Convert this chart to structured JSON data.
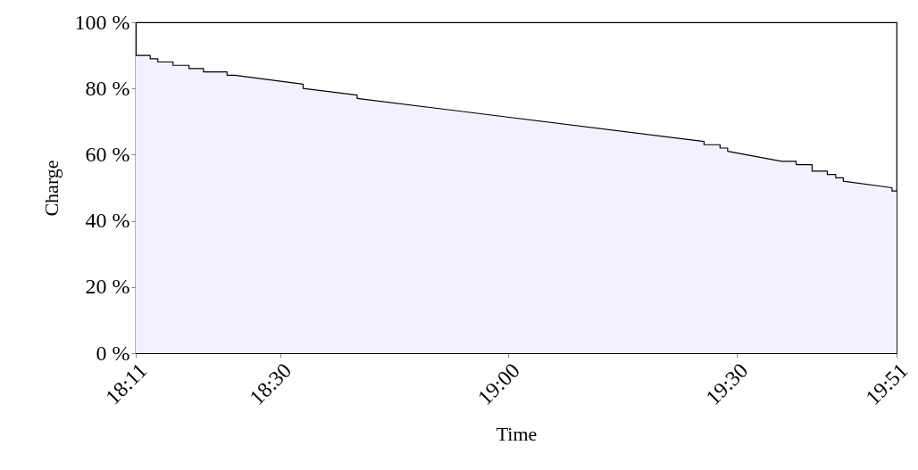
{
  "chart_data": {
    "type": "area",
    "xlabel": "Time",
    "ylabel": "Charge",
    "x": [
      18.1833,
      18.215,
      18.215,
      18.2317,
      18.2317,
      18.265,
      18.265,
      18.3,
      18.3,
      18.3317,
      18.3317,
      18.3833,
      18.3833,
      18.4,
      18.55,
      18.55,
      18.6683,
      18.6683,
      19.4283,
      19.4283,
      19.4633,
      19.4633,
      19.48,
      19.48,
      19.5983,
      19.63,
      19.63,
      19.665,
      19.665,
      19.6983,
      19.6983,
      19.7167,
      19.7167,
      19.7333,
      19.7333,
      19.84,
      19.84,
      19.85
    ],
    "series": [
      {
        "color": "#f2f2ff",
        "values": [
          90,
          90,
          89,
          89,
          88,
          88,
          87,
          87,
          86,
          86,
          85,
          85,
          84,
          84,
          81.3,
          80,
          78,
          77,
          64,
          63,
          63,
          62,
          62,
          61,
          58,
          58,
          57,
          57,
          55,
          55,
          54,
          54,
          53,
          53,
          52,
          50,
          49,
          49
        ]
      }
    ],
    "xlim": [
      18.1833,
      19.85
    ],
    "xticks": [
      {
        "value": 18.1833,
        "label": "18:11"
      },
      {
        "value": 18.5,
        "label": "18:30"
      },
      {
        "value": 19.0,
        "label": "19:00"
      },
      {
        "value": 19.5,
        "label": "19:30"
      },
      {
        "value": 19.85,
        "label": "19:51"
      }
    ],
    "ylim": [
      0,
      100
    ],
    "yticks": [
      {
        "value": 0,
        "label": "0 %"
      },
      {
        "value": 20,
        "label": "20 %"
      },
      {
        "value": 40,
        "label": "40 %"
      },
      {
        "value": 60,
        "label": "60 %"
      },
      {
        "value": 80,
        "label": "80 %"
      },
      {
        "value": 100,
        "label": "100 %"
      }
    ],
    "grid": false,
    "marker": "none",
    "line_style": "solid"
  }
}
